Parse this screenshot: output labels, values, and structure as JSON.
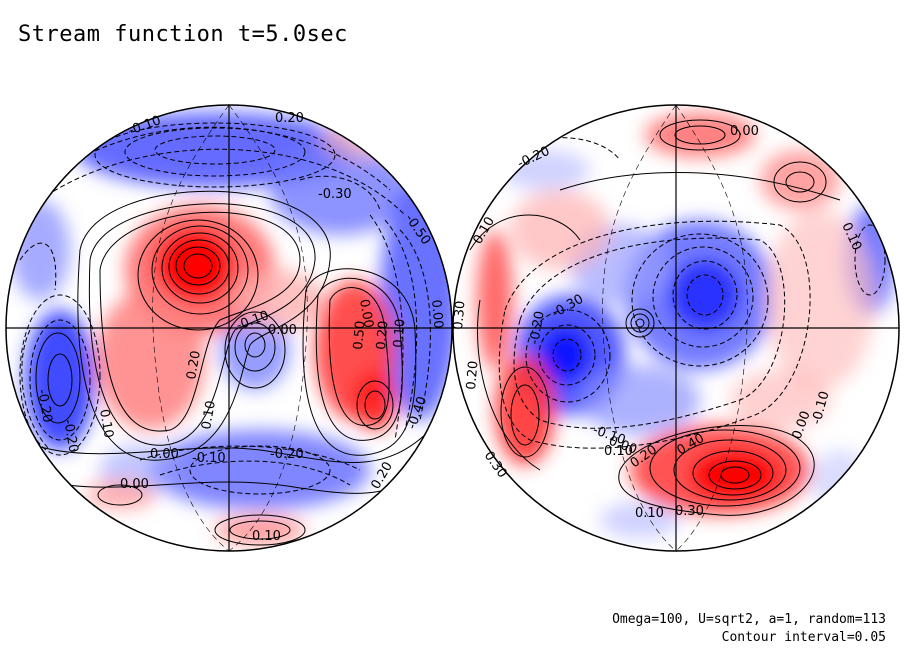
{
  "title": "Stream function t=5.0sec",
  "footer": {
    "params": "Omega=100, U=sqrt2, a=1, random=113",
    "contour": "Contour interval=0.05"
  },
  "colors": {
    "positive": "#ff0000",
    "negative": "#0000ff",
    "zero": "#ffffff"
  },
  "left_hemisphere_labels": [
    "0.20",
    "-0.30",
    "-0.10",
    "-0.50",
    "0.20",
    "0.50",
    "-0.10",
    "0.00",
    "-0.20",
    "0.10",
    "0.20",
    "0.10",
    "0.00",
    "-0.10",
    "-0.20",
    "0.10",
    "0.00",
    "-0.40",
    "0.00",
    "0.00",
    "0.10",
    "0.20",
    "-0.20"
  ],
  "right_hemisphere_labels": [
    "0.00",
    "-0.20",
    "0.10",
    "0.10",
    "-0.30",
    "-0.20",
    "0.30",
    "0.20",
    "-0.10",
    "0.00",
    "0.10",
    "0.20",
    "0.40",
    "0.30",
    "0.10",
    "-0.10",
    "0.30",
    "0.00"
  ]
}
